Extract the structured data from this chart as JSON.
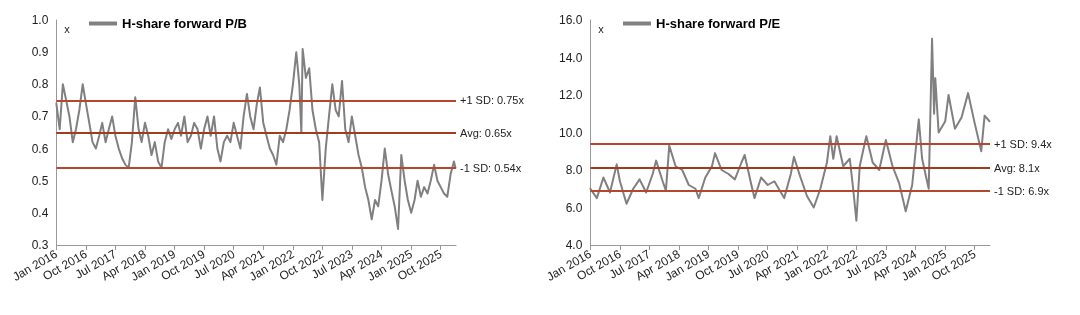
{
  "chart_data": [
    {
      "type": "line",
      "ylabel": "x",
      "legend": "top left",
      "grid": false,
      "marker": "none",
      "line_style": "solid",
      "xlim": [
        "2016-01-01",
        "2026-02-20"
      ],
      "xticks": [
        {
          "value": "2016-01-01",
          "label": "Jan 2016"
        },
        {
          "value": "2016-10-01",
          "label": "Oct 2016"
        },
        {
          "value": "2017-07-01",
          "label": "Jul 2017"
        },
        {
          "value": "2018-04-01",
          "label": "Apr 2018"
        },
        {
          "value": "2019-01-01",
          "label": "Jan 2019"
        },
        {
          "value": "2019-10-01",
          "label": "Oct 2019"
        },
        {
          "value": "2020-07-01",
          "label": "Jul 2020"
        },
        {
          "value": "2021-04-01",
          "label": "Apr 2021"
        },
        {
          "value": "2022-01-01",
          "label": "Jan 2022"
        },
        {
          "value": "2022-10-01",
          "label": "Oct 2022"
        },
        {
          "value": "2023-07-01",
          "label": "Jul 2023"
        },
        {
          "value": "2024-04-01",
          "label": "Apr 2024"
        },
        {
          "value": "2025-01-01",
          "label": "Jan 2025"
        },
        {
          "value": "2025-10-01",
          "label": "Oct 2025"
        }
      ],
      "ylim": [
        0.3,
        1.0
      ],
      "yticks": [
        {
          "value": 0.3,
          "label": "0.3"
        },
        {
          "value": 0.4,
          "label": "0.4"
        },
        {
          "value": 0.5,
          "label": "0.5"
        },
        {
          "value": 0.6,
          "label": "0.6"
        },
        {
          "value": 0.7,
          "label": "0.7"
        },
        {
          "value": 0.8,
          "label": "0.8"
        },
        {
          "value": 0.9,
          "label": "0.9"
        },
        {
          "value": 1.0,
          "label": "1.0"
        }
      ],
      "ref_lines": [
        {
          "axis": "y",
          "value": 0.75,
          "label": "+1 SD: 0.75x",
          "color": "#b5472f"
        },
        {
          "axis": "y",
          "value": 0.65,
          "label": "Avg: 0.65x",
          "color": "#a33a1f"
        },
        {
          "axis": "y",
          "value": 0.54,
          "label": "-1 SD: 0.54x",
          "color": "#b5472f"
        }
      ],
      "series": [
        {
          "name": "H-share forward P/B",
          "color": "#808080",
          "x": [
            "2016-01",
            "2016-02",
            "2016-03",
            "2016-04",
            "2016-05",
            "2016-06",
            "2016-07",
            "2016-08",
            "2016-09",
            "2016-10",
            "2016-11",
            "2016-12",
            "2017-01",
            "2017-02",
            "2017-03",
            "2017-04",
            "2017-05",
            "2017-06",
            "2017-07",
            "2017-08",
            "2017-09",
            "2017-10",
            "2017-11",
            "2017-12",
            "2018-01",
            "2018-02",
            "2018-03",
            "2018-04",
            "2018-05",
            "2018-06",
            "2018-07",
            "2018-08",
            "2018-09",
            "2018-10",
            "2018-11",
            "2018-12",
            "2019-01",
            "2019-02",
            "2019-03",
            "2019-04",
            "2019-05",
            "2019-06",
            "2019-07",
            "2019-08",
            "2019-09",
            "2019-10",
            "2019-11",
            "2019-12",
            "2020-01",
            "2020-02",
            "2020-03",
            "2020-04",
            "2020-05",
            "2020-06",
            "2020-07",
            "2020-08",
            "2020-09",
            "2020-10",
            "2020-11",
            "2020-12",
            "2021-01",
            "2021-02",
            "2021-03",
            "2021-04",
            "2021-05",
            "2021-06",
            "2021-07",
            "2021-08",
            "2021-09",
            "2021-10",
            "2021-11",
            "2021-12",
            "2022-01",
            "2022-02",
            "2022-03",
            "2022-03-20",
            "2022-04",
            "2022-05",
            "2022-06",
            "2022-07",
            "2022-08",
            "2022-09",
            "2022-10",
            "2022-11",
            "2022-12",
            "2023-01",
            "2023-02",
            "2023-03",
            "2023-04",
            "2023-05",
            "2023-06",
            "2023-07",
            "2023-08",
            "2023-09",
            "2023-10",
            "2023-11",
            "2023-12",
            "2024-01",
            "2024-02",
            "2024-03",
            "2024-04",
            "2024-05",
            "2024-06",
            "2024-07",
            "2024-08",
            "2024-09",
            "2024-10",
            "2024-11",
            "2024-12",
            "2025-01",
            "2025-02",
            "2025-03",
            "2025-04",
            "2025-05",
            "2025-06",
            "2025-07",
            "2025-08",
            "2025-09",
            "2025-10",
            "2025-11",
            "2025-12",
            "2026-01",
            "2026-02",
            "2026-02-15"
          ],
          "values": [
            0.74,
            0.66,
            0.8,
            0.75,
            0.7,
            0.62,
            0.66,
            0.72,
            0.8,
            0.74,
            0.68,
            0.62,
            0.6,
            0.64,
            0.68,
            0.62,
            0.66,
            0.7,
            0.64,
            0.6,
            0.57,
            0.55,
            0.54,
            0.62,
            0.76,
            0.66,
            0.62,
            0.68,
            0.64,
            0.58,
            0.62,
            0.56,
            0.54,
            0.62,
            0.66,
            0.63,
            0.66,
            0.68,
            0.64,
            0.7,
            0.62,
            0.64,
            0.68,
            0.66,
            0.6,
            0.66,
            0.7,
            0.64,
            0.7,
            0.6,
            0.56,
            0.62,
            0.64,
            0.62,
            0.68,
            0.64,
            0.6,
            0.7,
            0.77,
            0.7,
            0.66,
            0.74,
            0.79,
            0.68,
            0.64,
            0.6,
            0.58,
            0.55,
            0.64,
            0.62,
            0.66,
            0.72,
            0.8,
            0.9,
            0.8,
            0.65,
            0.91,
            0.82,
            0.85,
            0.72,
            0.66,
            0.62,
            0.44,
            0.6,
            0.7,
            0.8,
            0.72,
            0.7,
            0.81,
            0.66,
            0.62,
            0.7,
            0.64,
            0.58,
            0.54,
            0.48,
            0.44,
            0.38,
            0.44,
            0.42,
            0.5,
            0.6,
            0.52,
            0.47,
            0.42,
            0.35,
            0.58,
            0.5,
            0.44,
            0.4,
            0.44,
            0.5,
            0.45,
            0.48,
            0.46,
            0.5,
            0.55,
            0.5,
            0.48,
            0.46,
            0.45,
            0.52,
            0.56,
            0.54
          ]
        }
      ]
    },
    {
      "type": "line",
      "ylabel": "x",
      "legend": "top left",
      "grid": false,
      "marker": "none",
      "line_style": "solid",
      "xlim": [
        "2016-01-01",
        "2026-02-20"
      ],
      "xticks": [
        {
          "value": "2016-01-01",
          "label": "Jan 2016"
        },
        {
          "value": "2016-10-01",
          "label": "Oct 2016"
        },
        {
          "value": "2017-07-01",
          "label": "Jul 2017"
        },
        {
          "value": "2018-04-01",
          "label": "Apr 2018"
        },
        {
          "value": "2019-01-01",
          "label": "Jan 2019"
        },
        {
          "value": "2019-10-01",
          "label": "Oct 2019"
        },
        {
          "value": "2020-07-01",
          "label": "Jul 2020"
        },
        {
          "value": "2021-04-01",
          "label": "Apr 2021"
        },
        {
          "value": "2022-01-01",
          "label": "Jan 2022"
        },
        {
          "value": "2022-10-01",
          "label": "Oct 2022"
        },
        {
          "value": "2023-07-01",
          "label": "Jul 2023"
        },
        {
          "value": "2024-04-01",
          "label": "Apr 2024"
        },
        {
          "value": "2025-01-01",
          "label": "Jan 2025"
        },
        {
          "value": "2025-10-01",
          "label": "Oct 2025"
        }
      ],
      "ylim": [
        4.0,
        16.0
      ],
      "yticks": [
        {
          "value": 4,
          "label": "4.0"
        },
        {
          "value": 6,
          "label": "6.0"
        },
        {
          "value": 8,
          "label": "8.0"
        },
        {
          "value": 10,
          "label": "10.0"
        },
        {
          "value": 12,
          "label": "12.0"
        },
        {
          "value": 14,
          "label": "14.0"
        },
        {
          "value": 16,
          "label": "16.0"
        }
      ],
      "ref_lines": [
        {
          "axis": "y",
          "value": 9.4,
          "label": "+1 SD: 9.4x",
          "color": "#b5472f"
        },
        {
          "axis": "y",
          "value": 8.1,
          "label": "Avg: 8.1x",
          "color": "#a33a1f"
        },
        {
          "axis": "y",
          "value": 6.9,
          "label": "-1 SD: 6.9x",
          "color": "#b5472f"
        }
      ],
      "series": [
        {
          "name": "H-share forward P/E",
          "color": "#808080",
          "x": [
            "2016-01",
            "2016-03",
            "2016-05",
            "2016-07",
            "2016-09",
            "2016-10",
            "2016-12",
            "2017-02",
            "2017-04",
            "2017-06",
            "2017-08",
            "2017-09",
            "2017-11",
            "2017-12",
            "2018-01",
            "2018-03",
            "2018-05",
            "2018-07",
            "2018-09",
            "2018-10",
            "2018-12",
            "2019-02",
            "2019-03",
            "2019-05",
            "2019-07",
            "2019-09",
            "2019-11",
            "2019-12",
            "2020-02",
            "2020-03",
            "2020-05",
            "2020-07",
            "2020-09",
            "2020-11",
            "2020-12",
            "2021-02",
            "2021-03",
            "2021-05",
            "2021-07",
            "2021-09",
            "2021-11",
            "2022-01",
            "2022-02",
            "2022-03",
            "2022-04",
            "2022-06",
            "2022-08",
            "2022-09",
            "2022-10",
            "2022-11",
            "2022-12",
            "2023-01",
            "2023-03",
            "2023-05",
            "2023-07",
            "2023-09",
            "2023-11",
            "2024-01",
            "2024-03",
            "2024-05",
            "2024-06",
            "2024-08",
            "2024-09",
            "2024-09-20",
            "2024-10",
            "2024-11",
            "2025-01",
            "2025-02",
            "2025-04",
            "2025-06",
            "2025-08",
            "2025-10",
            "2025-12",
            "2026-01",
            "2026-02-15"
          ],
          "values": [
            7.0,
            6.5,
            7.6,
            6.8,
            8.3,
            7.4,
            6.2,
            7.0,
            7.5,
            6.8,
            7.8,
            8.5,
            7.4,
            6.9,
            9.3,
            8.2,
            8.0,
            7.2,
            7.0,
            6.5,
            7.6,
            8.2,
            8.9,
            8.0,
            7.8,
            7.5,
            8.4,
            8.8,
            7.2,
            6.5,
            7.6,
            7.2,
            7.4,
            6.8,
            6.5,
            7.8,
            8.7,
            7.6,
            6.6,
            6.0,
            7.0,
            8.4,
            9.8,
            8.6,
            9.8,
            8.2,
            8.6,
            7.0,
            5.3,
            8.2,
            9.0,
            9.8,
            8.4,
            8.0,
            9.6,
            8.2,
            7.3,
            5.8,
            7.2,
            10.7,
            8.6,
            7.0,
            15.0,
            11.0,
            12.9,
            10.0,
            10.6,
            12.0,
            10.2,
            10.8,
            12.1,
            10.5,
            9.0,
            10.9,
            10.6
          ]
        }
      ]
    }
  ]
}
